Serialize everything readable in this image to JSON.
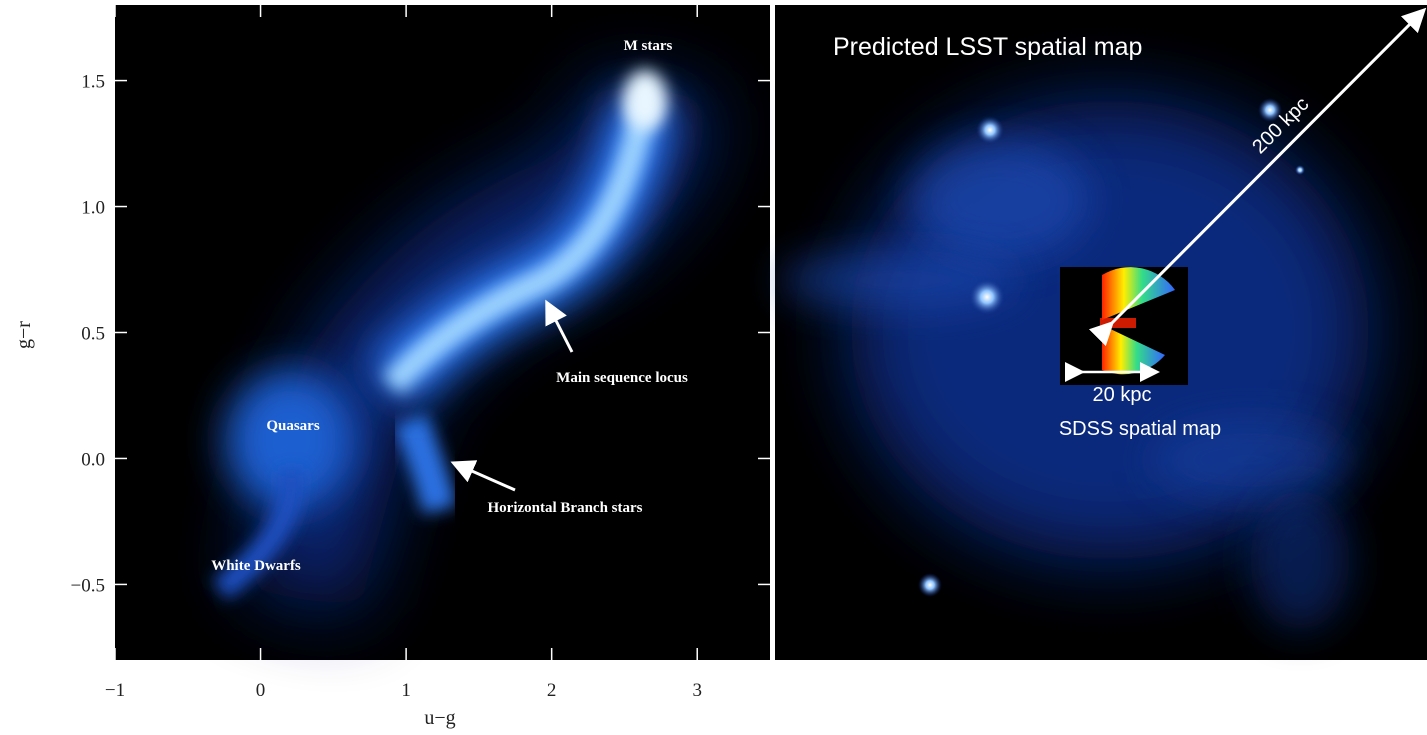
{
  "chart_data": {
    "type": "density",
    "xlabel": "u−g",
    "ylabel": "g−r",
    "xlim": [
      -1,
      3.5
    ],
    "ylim": [
      -0.8,
      1.8
    ],
    "xticks": [
      {
        "value": -1,
        "label": "−1"
      },
      0,
      1,
      2,
      3
    ],
    "yticks": [
      {
        "value": -0.5,
        "label": "−0.5"
      },
      {
        "value": 0,
        "label": "0.0"
      },
      0.5,
      {
        "value": 1,
        "label": "1.0"
      },
      1.5
    ],
    "annotations": [
      "M stars",
      "Main sequence locus",
      "Quasars",
      "Horizontal Branch stars",
      "White Dwarfs"
    ]
  },
  "image": {
    "title": "Predicted LSST spatial map",
    "outer_scale": "200 kpc",
    "inner_scale": "20 kpc",
    "inset_label": "SDSS spatial map"
  }
}
